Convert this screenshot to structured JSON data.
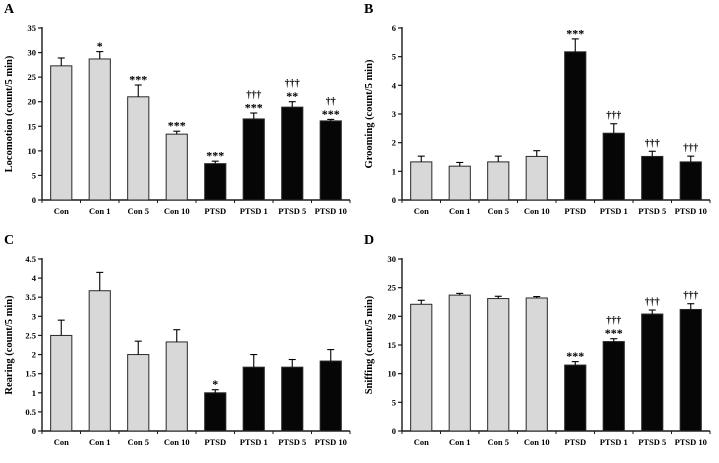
{
  "figure": {
    "background": "#ffffff",
    "colors": {
      "control_fill": "#d8d8d8",
      "ptsd_fill": "#060606",
      "bar_stroke": "#2a2a2a",
      "axis": "#1a1a1a",
      "text": "#000000"
    }
  },
  "chart_data": [
    {
      "type": "bar",
      "panel": "A",
      "ylabel": "Locomotion (count/5 min)",
      "xlabel": "",
      "ylim": [
        0,
        35
      ],
      "ystep": 5,
      "grid": false,
      "legend": "none",
      "categories": [
        "Con",
        "Con 1",
        "Con 5",
        "Con 10",
        "PTSD",
        "PTSD 1",
        "PTSD 5",
        "PTSD 10"
      ],
      "values": [
        27.3,
        28.7,
        21.0,
        13.4,
        7.4,
        16.5,
        18.9,
        16.1
      ],
      "errors": [
        1.6,
        1.5,
        2.4,
        0.6,
        0.5,
        1.2,
        1.1,
        0.3
      ],
      "bar_groups": [
        "control",
        "control",
        "control",
        "control",
        "ptsd",
        "ptsd",
        "ptsd",
        "ptsd"
      ],
      "annotations": [
        [],
        [
          "*"
        ],
        [
          "***"
        ],
        [
          "***"
        ],
        [
          "***"
        ],
        [
          "†††",
          "***"
        ],
        [
          "†††",
          "**"
        ],
        [
          "††",
          "***"
        ]
      ]
    },
    {
      "type": "bar",
      "panel": "B",
      "ylabel": "Grooming (count/5 min)",
      "xlabel": "",
      "ylim": [
        0,
        6
      ],
      "ystep": 1,
      "grid": false,
      "legend": "none",
      "categories": [
        "Con",
        "Con 1",
        "Con 5",
        "Con 10",
        "PTSD",
        "PTSD 1",
        "PTSD 5",
        "PTSD 10"
      ],
      "values": [
        1.33,
        1.18,
        1.33,
        1.52,
        5.17,
        2.33,
        1.52,
        1.33
      ],
      "errors": [
        0.2,
        0.13,
        0.2,
        0.2,
        0.45,
        0.33,
        0.18,
        0.2
      ],
      "bar_groups": [
        "control",
        "control",
        "control",
        "control",
        "ptsd",
        "ptsd",
        "ptsd",
        "ptsd"
      ],
      "annotations": [
        [],
        [],
        [],
        [],
        [
          "***"
        ],
        [
          "†††"
        ],
        [
          "†††"
        ],
        [
          "†††"
        ]
      ]
    },
    {
      "type": "bar",
      "panel": "C",
      "ylabel": "Rearing (count/5 min)",
      "xlabel": "",
      "ylim": [
        0,
        4.5
      ],
      "ystep": 0.5,
      "grid": false,
      "legend": "none",
      "categories": [
        "Con",
        "Con 1",
        "Con 5",
        "Con 10",
        "PTSD",
        "PTSD 1",
        "PTSD 5",
        "PTSD 10"
      ],
      "values": [
        2.5,
        3.67,
        2.0,
        2.33,
        1.0,
        1.67,
        1.67,
        1.83
      ],
      "errors": [
        0.4,
        0.48,
        0.35,
        0.32,
        0.08,
        0.33,
        0.2,
        0.3
      ],
      "bar_groups": [
        "control",
        "control",
        "control",
        "control",
        "ptsd",
        "ptsd",
        "ptsd",
        "ptsd"
      ],
      "annotations": [
        [],
        [],
        [],
        [],
        [
          "*"
        ],
        [],
        [],
        []
      ]
    },
    {
      "type": "bar",
      "panel": "D",
      "ylabel": "Sniffing (count/5 min)",
      "xlabel": "",
      "ylim": [
        0,
        30
      ],
      "ystep": 5,
      "grid": false,
      "legend": "none",
      "categories": [
        "Con",
        "Con 1",
        "Con 5",
        "Con 10",
        "PTSD",
        "PTSD 1",
        "PTSD 5",
        "PTSD 10"
      ],
      "values": [
        22.1,
        23.7,
        23.1,
        23.2,
        11.5,
        15.6,
        20.4,
        21.2
      ],
      "errors": [
        0.7,
        0.3,
        0.4,
        0.25,
        0.6,
        0.5,
        0.7,
        1.0
      ],
      "bar_groups": [
        "control",
        "control",
        "control",
        "control",
        "ptsd",
        "ptsd",
        "ptsd",
        "ptsd"
      ],
      "annotations": [
        [],
        [],
        [],
        [],
        [
          "***"
        ],
        [
          "†††",
          "***"
        ],
        [
          "†††"
        ],
        [
          "†††"
        ]
      ]
    }
  ]
}
